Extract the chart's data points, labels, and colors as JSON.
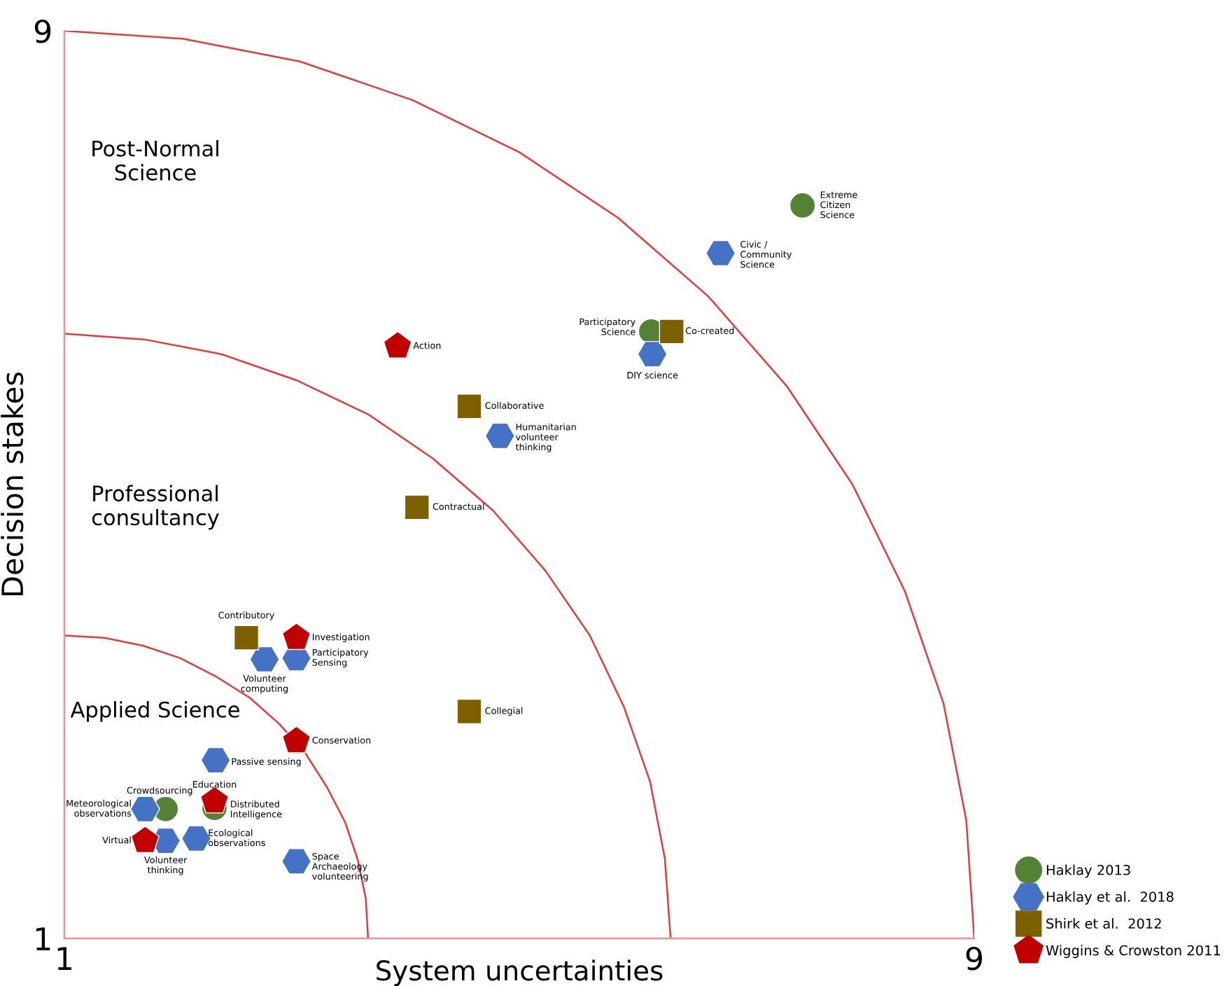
{
  "chart_data": {
    "type": "scatter",
    "xlabel": "System uncertainties",
    "ylabel": "Decision stakes",
    "xlim": [
      1,
      9
    ],
    "ylim": [
      1,
      9
    ],
    "xticks": [
      1,
      9
    ],
    "yticks": [
      1,
      9
    ],
    "grid": false,
    "legend": "bottom right",
    "series": [
      {
        "type": "line",
        "color": "#e03c3c",
        "marker": "none",
        "line_style": "solid",
        "x": [
          9,
          8.93,
          8.73,
          8.39,
          7.93,
          7.35,
          6.66,
          5.87,
          5,
          4.06,
          3.07,
          2.04,
          1
        ],
        "values": [
          1,
          2.04,
          3.07,
          4.06,
          5,
          5.87,
          6.66,
          7.35,
          7.93,
          8.39,
          8.73,
          8.93,
          9
        ]
      },
      {
        "type": "line",
        "color": "#e03c3c",
        "marker": "none",
        "line_style": "solid",
        "x": [
          6.33,
          6.28,
          6.15,
          5.92,
          5.62,
          5.23,
          4.77,
          4.24,
          3.67,
          3.04,
          2.38,
          1.7,
          1
        ],
        "values": [
          1,
          1.7,
          2.38,
          3.04,
          3.67,
          4.24,
          4.77,
          5.23,
          5.62,
          5.92,
          6.15,
          6.28,
          6.33
        ]
      },
      {
        "type": "line",
        "color": "#e03c3c",
        "marker": "none",
        "line_style": "solid",
        "x": [
          3.67,
          3.65,
          3.58,
          3.47,
          3.31,
          3.12,
          2.89,
          2.63,
          2.33,
          2.02,
          1.69,
          1.35,
          1
        ],
        "values": [
          1,
          1.35,
          1.69,
          2.02,
          2.33,
          2.63,
          2.89,
          3.12,
          3.31,
          3.47,
          3.58,
          3.65,
          3.67
        ]
      },
      {
        "name": "Haklay 2013",
        "color": "#548235",
        "marker": "circle",
        "x": [
          7.49,
          6.16,
          1.89,
          2.32
        ],
        "values": [
          7.46,
          6.35,
          2.14,
          2.15
        ]
      },
      {
        "name": "Haklay et al.  2018",
        "color": "#4472c4",
        "x": [
          6.77,
          6.17,
          4.83,
          2.76,
          3.04,
          2.33,
          1.71,
          1.89,
          2.16,
          3.04
        ],
        "values": [
          7.04,
          6.15,
          5.43,
          3.46,
          3.47,
          2.57,
          2.14,
          1.86,
          1.88,
          1.68
        ]
      },
      {
        "name": "Shirk et al.  2012",
        "color": "#7f6000",
        "marker": "square",
        "x": [
          6.34,
          4.56,
          4.1,
          2.6,
          4.56
        ],
        "values": [
          6.35,
          5.69,
          4.8,
          3.65,
          3.0
        ]
      },
      {
        "name": "Wiggins & Crowston 2011",
        "color": "#c00000",
        "x": [
          3.93,
          3.04,
          3.04,
          2.32,
          1.71
        ],
        "values": [
          6.22,
          3.65,
          2.74,
          2.21,
          1.86
        ]
      }
    ],
    "annotations": [
      "Post-Normal\nScience",
      "Professional\nconsultancy",
      "Applied Science",
      {
        "text": "Extreme\nCitizen\nScience",
        "x": 7.49,
        "y": 7.46
      },
      {
        "text": "Participatory\nScience",
        "x": 6.16,
        "y": 6.35
      },
      {
        "text": "Crowdsourcing",
        "x": 1.89,
        "y": 2.14
      },
      {
        "text": "Distributed\nIntelligence",
        "x": 2.32,
        "y": 2.15
      },
      {
        "text": "Civic /\nCommunity\nScience",
        "x": 6.77,
        "y": 7.04
      },
      {
        "text": "DIY science",
        "x": 6.17,
        "y": 6.15
      },
      {
        "text": "Humanitarian\nvolunteer\nthinking",
        "x": 4.83,
        "y": 5.43
      },
      {
        "text": "Volunteer\ncomputing",
        "x": 2.76,
        "y": 3.46
      },
      {
        "text": "Participatory\nSensing",
        "x": 3.04,
        "y": 3.47
      },
      {
        "text": "Passive sensing",
        "x": 2.33,
        "y": 2.57
      },
      {
        "text": "Meteorological\nobservations",
        "x": 1.71,
        "y": 2.14
      },
      {
        "text": "Volunteer\nthinking",
        "x": 1.89,
        "y": 1.86
      },
      {
        "text": "Ecological\nobservations",
        "x": 2.16,
        "y": 1.88
      },
      {
        "text": "Space\nArchaeology\nvolunteering",
        "x": 3.04,
        "y": 1.68
      },
      {
        "text": "Co-created",
        "x": 6.34,
        "y": 6.35
      },
      {
        "text": "Collaborative",
        "x": 4.56,
        "y": 5.69
      },
      {
        "text": "Contractual",
        "x": 4.1,
        "y": 4.8
      },
      {
        "text": "Contributory",
        "x": 2.6,
        "y": 3.65
      },
      {
        "text": "Collegial",
        "x": 4.56,
        "y": 3.0
      },
      {
        "text": "Action",
        "x": 3.93,
        "y": 6.22
      },
      {
        "text": "Investigation",
        "x": 3.04,
        "y": 3.65
      },
      {
        "text": "Conservation",
        "x": 3.04,
        "y": 2.74
      },
      {
        "text": "Education",
        "x": 2.32,
        "y": 2.21
      },
      {
        "text": "Virtual",
        "x": 1.71,
        "y": 1.86
      }
    ]
  }
}
